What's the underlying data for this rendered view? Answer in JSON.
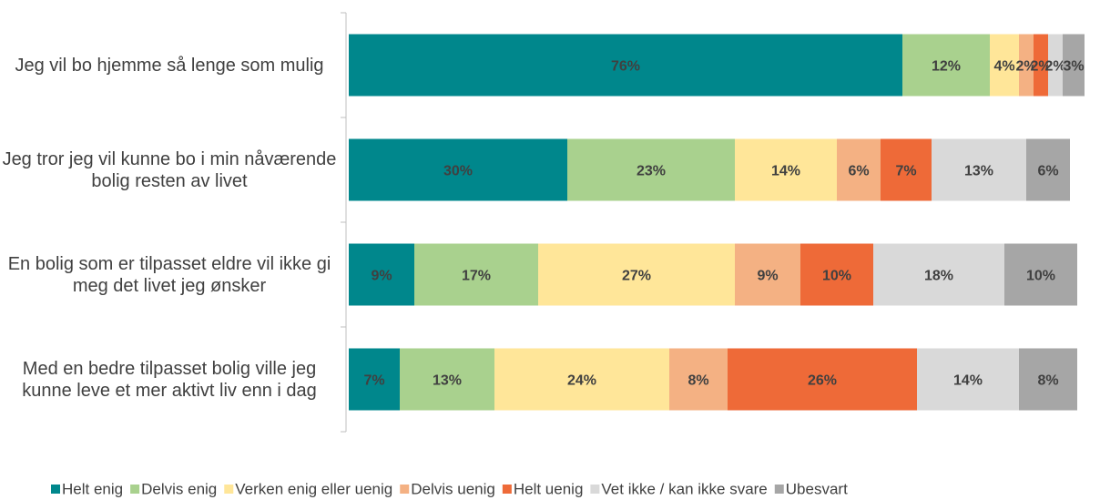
{
  "chart_data": {
    "type": "bar",
    "orientation": "horizontal",
    "stacked": true,
    "categories": [
      "Jeg vil bo hjemme så lenge som mulig",
      "Jeg tror jeg vil kunne bo i min nåværende bolig resten av livet",
      "En bolig som er tilpasset eldre vil ikke gi meg det livet jeg ønsker",
      "Med en bedre tilpasset bolig ville jeg kunne leve et mer aktivt liv enn i dag"
    ],
    "xlim": [
      0,
      100
    ],
    "legend": "bottom",
    "series": [
      {
        "name": "Helt enig",
        "color": "#00878c",
        "values": [
          76,
          30,
          9,
          7
        ],
        "value_labels": [
          "76%",
          "30%",
          "9%",
          "7%"
        ]
      },
      {
        "name": "Delvis enig",
        "color": "#a9d18e",
        "values": [
          12,
          23,
          17,
          13
        ],
        "value_labels": [
          "12%",
          "23%",
          "17%",
          "13%"
        ]
      },
      {
        "name": "Verken enig eller uenig",
        "color": "#ffe699",
        "values": [
          4,
          14,
          27,
          24
        ],
        "value_labels": [
          "4%",
          "14%",
          "27%",
          "24%"
        ]
      },
      {
        "name": "Delvis uenig",
        "color": "#f4b183",
        "values": [
          2,
          6,
          9,
          8
        ],
        "value_labels": [
          "2%",
          "6%",
          "9%",
          "8%"
        ]
      },
      {
        "name": "Helt uenig",
        "color": "#ee6a38",
        "values": [
          2,
          7,
          10,
          26
        ],
        "value_labels": [
          "2%",
          "7%",
          "10%",
          "26%"
        ]
      },
      {
        "name": "Vet ikke / kan ikke svare",
        "color": "#d9d9d9",
        "values": [
          2,
          13,
          18,
          14
        ],
        "value_labels": [
          "2%",
          "13%",
          "18%",
          "14%"
        ]
      },
      {
        "name": "Ubesvart",
        "color": "#a6a6a6",
        "values": [
          3,
          6,
          10,
          8
        ],
        "value_labels": [
          "3%",
          "6%",
          "10%",
          "8%"
        ]
      }
    ]
  }
}
